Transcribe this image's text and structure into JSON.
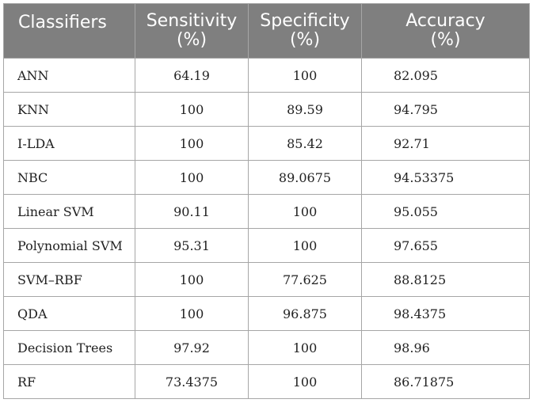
{
  "table": {
    "headers": [
      {
        "line1": "Classifiers",
        "line2": ""
      },
      {
        "line1": "Sensitivity",
        "line2": "(%)"
      },
      {
        "line1": "Specificity",
        "line2": "(%)"
      },
      {
        "line1": "Accuracy",
        "line2": "(%)"
      }
    ],
    "rows": [
      {
        "classifier": "ANN",
        "sensitivity": "64.19",
        "specificity": "100",
        "accuracy": "82.095"
      },
      {
        "classifier": "KNN",
        "sensitivity": "100",
        "specificity": "89.59",
        "accuracy": "94.795"
      },
      {
        "classifier": "I-LDA",
        "sensitivity": "100",
        "specificity": "85.42",
        "accuracy": "92.71"
      },
      {
        "classifier": "NBC",
        "sensitivity": "100",
        "specificity": "89.0675",
        "accuracy": "94.53375"
      },
      {
        "classifier": "Linear SVM",
        "sensitivity": "90.11",
        "specificity": "100",
        "accuracy": "95.055"
      },
      {
        "classifier": "Polynomial SVM",
        "sensitivity": "95.31",
        "specificity": "100",
        "accuracy": "97.655"
      },
      {
        "classifier": "SVM–RBF",
        "sensitivity": "100",
        "specificity": "77.625",
        "accuracy": "88.8125"
      },
      {
        "classifier": "QDA",
        "sensitivity": "100",
        "specificity": "96.875",
        "accuracy": "98.4375"
      },
      {
        "classifier": "Decision Trees",
        "sensitivity": "97.92",
        "specificity": "100",
        "accuracy": "98.96"
      },
      {
        "classifier": "RF",
        "sensitivity": "73.4375",
        "specificity": "100",
        "accuracy": "86.71875"
      }
    ]
  },
  "colors": {
    "header_background": "#7f7f7f",
    "header_text": "#ffffff",
    "grid_line": "#a6a6a6"
  }
}
